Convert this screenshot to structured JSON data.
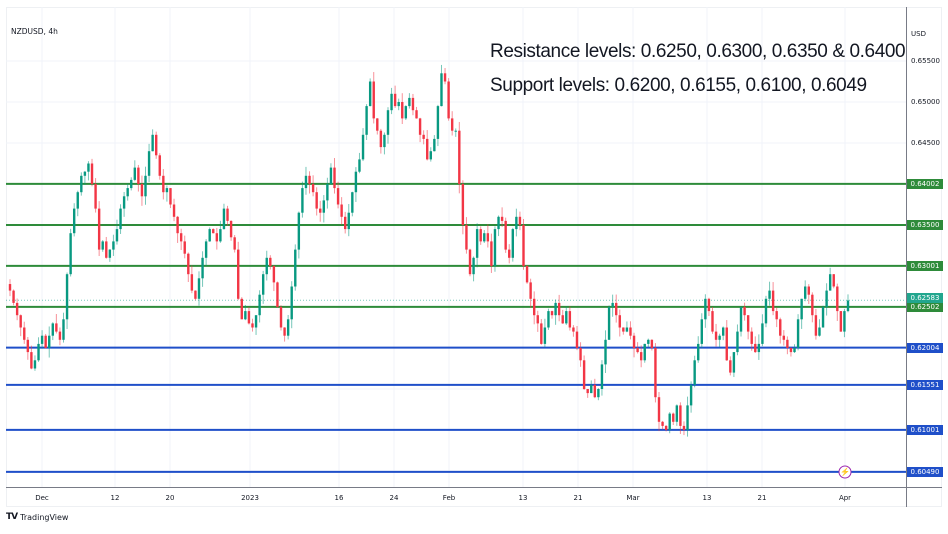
{
  "header": {
    "symbol": "NZDUSD, 4h",
    "currency": "USD"
  },
  "annotations": {
    "resistance": "Resistance levels: 0.6250, 0.6300, 0.6350 & 0.6400",
    "support": "Support levels: 0.6200, 0.6155, 0.6100, 0.6049"
  },
  "footer": {
    "brand_logo": "TV",
    "brand_name": "TradingView"
  },
  "colors": {
    "up": "#089981",
    "down": "#f23645",
    "resistance": "#2e8b3a",
    "support": "#1f4fc9",
    "last_price": "#22a68e",
    "grid": "#f0f3fa",
    "alert": "#9c27b0"
  },
  "price_axis": {
    "ticks": [
      {
        "label": "0.65500",
        "value": 0.655
      },
      {
        "label": "0.65000",
        "value": 0.65
      },
      {
        "label": "0.64500",
        "value": 0.645
      }
    ]
  },
  "time_axis": {
    "ticks": [
      {
        "label": "Dec",
        "x": 36
      },
      {
        "label": "12",
        "x": 109
      },
      {
        "label": "20",
        "x": 164
      },
      {
        "label": "2023",
        "x": 244
      },
      {
        "label": "16",
        "x": 333
      },
      {
        "label": "24",
        "x": 388
      },
      {
        "label": "Feb",
        "x": 443
      },
      {
        "label": "13",
        "x": 517
      },
      {
        "label": "21",
        "x": 572
      },
      {
        "label": "Mar",
        "x": 627
      },
      {
        "label": "13",
        "x": 701
      },
      {
        "label": "21",
        "x": 756
      },
      {
        "label": "Apr",
        "x": 839
      }
    ]
  },
  "chart_data": {
    "type": "candlestick",
    "title": "NZDUSD, 4h",
    "xlabel": "",
    "ylabel": "USD",
    "ylim": [
      0.604,
      0.6558
    ],
    "grid": true,
    "x_ticks": [
      "Dec",
      "12",
      "20",
      "2023",
      "16",
      "24",
      "Feb",
      "13",
      "21",
      "Mar",
      "13",
      "21",
      "Apr"
    ],
    "y_ticks": [
      0.655,
      0.65,
      0.645
    ],
    "horizontal_levels": [
      {
        "label": "0.64002",
        "value": 0.64002,
        "kind": "resistance"
      },
      {
        "label": "0.63500",
        "value": 0.635,
        "kind": "resistance"
      },
      {
        "label": "0.63001",
        "value": 0.63001,
        "kind": "resistance"
      },
      {
        "label": "0.62502",
        "value": 0.62502,
        "kind": "resistance"
      },
      {
        "label": "0.62004",
        "value": 0.62004,
        "kind": "support"
      },
      {
        "label": "0.61551",
        "value": 0.61551,
        "kind": "support"
      },
      {
        "label": "0.61001",
        "value": 0.61001,
        "kind": "support"
      },
      {
        "label": "0.60490",
        "value": 0.6049,
        "kind": "support"
      }
    ],
    "last_price": {
      "label": "0.62583",
      "value": 0.62583
    },
    "close_path": [
      0.627,
      0.6255,
      0.624,
      0.6225,
      0.621,
      0.6195,
      0.6175,
      0.6185,
      0.6205,
      0.6215,
      0.62,
      0.6215,
      0.623,
      0.622,
      0.621,
      0.6235,
      0.629,
      0.634,
      0.637,
      0.639,
      0.641,
      0.6415,
      0.6425,
      0.64,
      0.637,
      0.632,
      0.633,
      0.631,
      0.632,
      0.633,
      0.6345,
      0.637,
      0.6385,
      0.6395,
      0.6405,
      0.642,
      0.64,
      0.6385,
      0.641,
      0.644,
      0.646,
      0.6435,
      0.641,
      0.639,
      0.6395,
      0.6375,
      0.636,
      0.634,
      0.633,
      0.6315,
      0.629,
      0.627,
      0.626,
      0.6285,
      0.631,
      0.633,
      0.6345,
      0.634,
      0.633,
      0.6345,
      0.637,
      0.6355,
      0.6335,
      0.632,
      0.626,
      0.6235,
      0.6245,
      0.623,
      0.6225,
      0.624,
      0.6265,
      0.629,
      0.631,
      0.63,
      0.628,
      0.625,
      0.6225,
      0.6215,
      0.6235,
      0.6275,
      0.632,
      0.6365,
      0.6395,
      0.641,
      0.64,
      0.639,
      0.637,
      0.6365,
      0.638,
      0.64,
      0.642,
      0.6395,
      0.6375,
      0.636,
      0.6345,
      0.6365,
      0.639,
      0.6415,
      0.643,
      0.646,
      0.6495,
      0.6525,
      0.648,
      0.6465,
      0.6445,
      0.646,
      0.649,
      0.651,
      0.6495,
      0.65,
      0.648,
      0.6495,
      0.6505,
      0.649,
      0.648,
      0.646,
      0.6455,
      0.643,
      0.644,
      0.6455,
      0.6495,
      0.6535,
      0.6525,
      0.648,
      0.6465,
      0.6465,
      0.64,
      0.635,
      0.632,
      0.629,
      0.631,
      0.6345,
      0.633,
      0.634,
      0.633,
      0.63,
      0.6345,
      0.636,
      0.6355,
      0.632,
      0.631,
      0.6345,
      0.636,
      0.635,
      0.63,
      0.628,
      0.626,
      0.624,
      0.623,
      0.6205,
      0.6225,
      0.6245,
      0.624,
      0.6255,
      0.624,
      0.623,
      0.6245,
      0.6225,
      0.622,
      0.62,
      0.6185,
      0.615,
      0.6145,
      0.6155,
      0.614,
      0.615,
      0.618,
      0.621,
      0.625,
      0.6255,
      0.624,
      0.6225,
      0.622,
      0.6225,
      0.6215,
      0.62,
      0.6195,
      0.6185,
      0.6205,
      0.621,
      0.62,
      0.614,
      0.611,
      0.6105,
      0.61,
      0.612,
      0.611,
      0.613,
      0.6105,
      0.61,
      0.613,
      0.6155,
      0.6185,
      0.6205,
      0.6235,
      0.626,
      0.6245,
      0.622,
      0.621,
      0.6215,
      0.6225,
      0.6185,
      0.617,
      0.6195,
      0.622,
      0.625,
      0.624,
      0.622,
      0.6205,
      0.6195,
      0.6205,
      0.623,
      0.626,
      0.627,
      0.6245,
      0.6235,
      0.6215,
      0.621,
      0.62,
      0.6195,
      0.62,
      0.6235,
      0.626,
      0.6275,
      0.6265,
      0.624,
      0.6215,
      0.6225,
      0.625,
      0.627,
      0.629,
      0.6275,
      0.6245,
      0.622,
      0.6245,
      0.6258
    ]
  }
}
